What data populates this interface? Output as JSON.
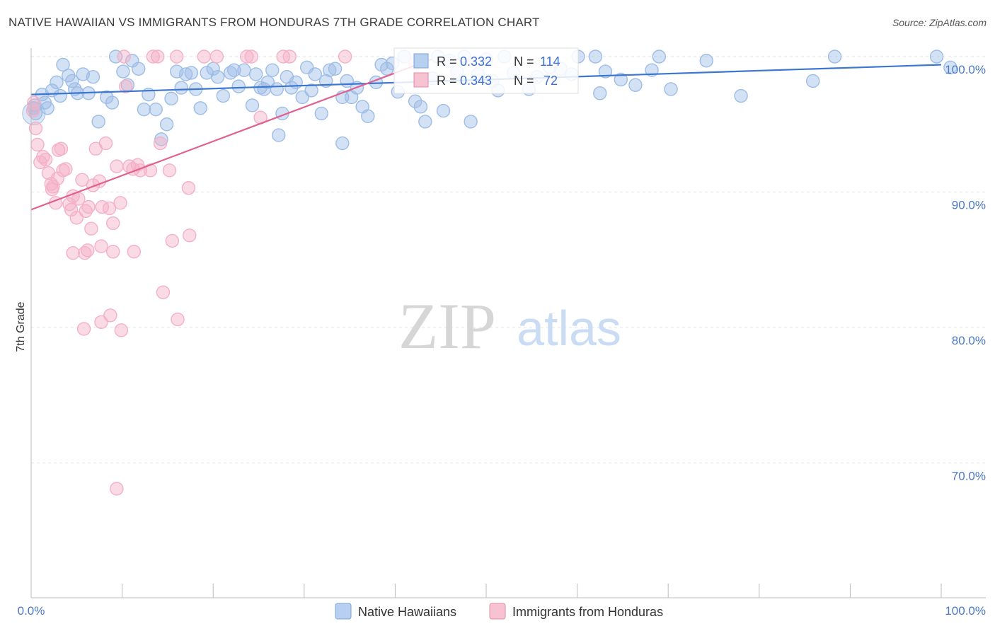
{
  "title": "NATIVE HAWAIIAN VS IMMIGRANTS FROM HONDURAS 7TH GRADE CORRELATION CHART",
  "source": "Source: ZipAtlas.com",
  "watermark": {
    "zip": "ZIP",
    "atlas": "atlas"
  },
  "chart_data": {
    "type": "scatter",
    "xlabel": "",
    "ylabel": "7th Grade",
    "xlim": [
      0,
      100
    ],
    "ylim": [
      60,
      101.5
    ],
    "x_tick_labels": [
      "0.0%",
      "100.0%"
    ],
    "y_ticks": [
      {
        "value": 100,
        "label": "100.0%"
      },
      {
        "value": 90,
        "label": "90.0%"
      },
      {
        "value": 80,
        "label": "80.0%"
      },
      {
        "value": 70,
        "label": "70.0%"
      }
    ],
    "grid": true,
    "legend_position": "bottom-center",
    "stats_box": [
      {
        "r_label": "R = ",
        "r_value": "0.332",
        "n_label": "N = ",
        "n_value": "114"
      },
      {
        "r_label": "R = ",
        "r_value": "0.343",
        "n_label": "N = ",
        "n_value": " 72"
      }
    ],
    "series": [
      {
        "name": "Native Hawaiians",
        "color": "#9dbde6",
        "line_color": "#3b76d0",
        "trend": {
          "x": [
            0,
            100
          ],
          "y": [
            97.2,
            99.4
          ]
        },
        "points": [
          [
            0.3,
            96.2
          ],
          [
            0.5,
            95.8
          ],
          [
            0.4,
            96.4
          ],
          [
            1.2,
            97.2
          ],
          [
            1.5,
            96.6
          ],
          [
            2.3,
            97.5
          ],
          [
            2.8,
            98.1
          ],
          [
            3.5,
            99.4
          ],
          [
            4.5,
            98.2
          ],
          [
            4.8,
            97.6
          ],
          [
            5.1,
            97.3
          ],
          [
            5.7,
            98.7
          ],
          [
            6.3,
            97.3
          ],
          [
            6.8,
            98.5
          ],
          [
            7.4,
            95.2
          ],
          [
            8.3,
            97.0
          ],
          [
            8.9,
            96.6
          ],
          [
            9.3,
            100.0
          ],
          [
            10.1,
            98.9
          ],
          [
            10.6,
            97.9
          ],
          [
            11.1,
            99.7
          ],
          [
            11.8,
            99.1
          ],
          [
            12.4,
            96.1
          ],
          [
            12.9,
            97.2
          ],
          [
            13.7,
            96.1
          ],
          [
            14.3,
            93.9
          ],
          [
            14.9,
            95.0
          ],
          [
            15.4,
            96.9
          ],
          [
            16.0,
            98.9
          ],
          [
            16.5,
            97.7
          ],
          [
            17.0,
            98.7
          ],
          [
            17.6,
            98.8
          ],
          [
            18.1,
            97.6
          ],
          [
            18.6,
            96.2
          ],
          [
            19.3,
            98.8
          ],
          [
            20.0,
            99.1
          ],
          [
            20.5,
            98.5
          ],
          [
            21.1,
            97.1
          ],
          [
            21.9,
            98.8
          ],
          [
            22.3,
            99.0
          ],
          [
            22.8,
            97.8
          ],
          [
            23.4,
            99.0
          ],
          [
            24.3,
            96.4
          ],
          [
            24.7,
            98.7
          ],
          [
            25.2,
            97.7
          ],
          [
            25.6,
            97.6
          ],
          [
            26.0,
            98.1
          ],
          [
            26.5,
            99.0
          ],
          [
            27.0,
            97.6
          ],
          [
            27.6,
            95.8
          ],
          [
            27.2,
            94.2
          ],
          [
            28.1,
            98.5
          ],
          [
            28.6,
            97.7
          ],
          [
            29.1,
            98.1
          ],
          [
            29.8,
            97.0
          ],
          [
            30.3,
            99.2
          ],
          [
            30.8,
            97.5
          ],
          [
            31.2,
            98.7
          ],
          [
            31.9,
            95.8
          ],
          [
            32.4,
            98.2
          ],
          [
            32.8,
            99.0
          ],
          [
            33.4,
            99.1
          ],
          [
            34.2,
            97.0
          ],
          [
            34.7,
            98.2
          ],
          [
            34.2,
            93.6
          ],
          [
            35.2,
            97.0
          ],
          [
            35.8,
            97.7
          ],
          [
            36.4,
            96.3
          ],
          [
            37.0,
            95.6
          ],
          [
            37.9,
            98.1
          ],
          [
            38.5,
            99.4
          ],
          [
            39.1,
            99.1
          ],
          [
            39.7,
            99.5
          ],
          [
            40.3,
            97.4
          ],
          [
            41.0,
            100.0
          ],
          [
            42.2,
            96.7
          ],
          [
            42.8,
            96.3
          ],
          [
            43.3,
            95.2
          ],
          [
            44.1,
            98.4
          ],
          [
            44.7,
            100.0
          ],
          [
            45.3,
            96.0
          ],
          [
            46.0,
            99.7
          ],
          [
            46.8,
            98.9
          ],
          [
            47.6,
            100.0
          ],
          [
            48.3,
            95.2
          ],
          [
            49.1,
            98.7
          ],
          [
            50.0,
            99.8
          ],
          [
            50.7,
            98.2
          ],
          [
            51.3,
            97.5
          ],
          [
            52.0,
            100.0
          ],
          [
            53.0,
            98.8
          ],
          [
            54.7,
            97.6
          ],
          [
            55.6,
            98.5
          ],
          [
            57.0,
            99.2
          ],
          [
            58.2,
            99.1
          ],
          [
            59.4,
            98.7
          ],
          [
            60.1,
            100.0
          ],
          [
            62.0,
            100.0
          ],
          [
            62.5,
            97.3
          ],
          [
            63.1,
            98.9
          ],
          [
            64.8,
            98.3
          ],
          [
            66.4,
            97.9
          ],
          [
            68.2,
            99.0
          ],
          [
            69.0,
            100.0
          ],
          [
            70.3,
            97.6
          ],
          [
            74.2,
            99.7
          ],
          [
            78.0,
            97.1
          ],
          [
            85.9,
            98.2
          ],
          [
            88.3,
            100.0
          ],
          [
            101.0,
            99.2
          ],
          [
            99.5,
            100.0
          ],
          [
            1.8,
            96.2
          ],
          [
            3.2,
            97.1
          ],
          [
            4.1,
            98.6
          ]
        ]
      },
      {
        "name": "Immigrants from Honduras",
        "color": "#f4b0c6",
        "line_color": "#e0608e",
        "trend": {
          "x": [
            0,
            44
          ],
          "y": [
            88.7,
            99.8
          ]
        },
        "points": [
          [
            0.2,
            96.0
          ],
          [
            0.5,
            94.7
          ],
          [
            0.7,
            93.5
          ],
          [
            1.0,
            92.2
          ],
          [
            1.3,
            92.6
          ],
          [
            1.6,
            92.4
          ],
          [
            1.9,
            91.4
          ],
          [
            2.2,
            90.6
          ],
          [
            2.4,
            90.4
          ],
          [
            2.7,
            89.2
          ],
          [
            2.9,
            91.0
          ],
          [
            3.3,
            93.2
          ],
          [
            3.5,
            91.6
          ],
          [
            3.8,
            91.7
          ],
          [
            4.2,
            89.1
          ],
          [
            4.4,
            88.7
          ],
          [
            4.6,
            89.7
          ],
          [
            5.0,
            88.1
          ],
          [
            5.2,
            89.5
          ],
          [
            5.6,
            90.9
          ],
          [
            6.0,
            88.6
          ],
          [
            6.3,
            88.9
          ],
          [
            6.6,
            87.3
          ],
          [
            6.8,
            90.5
          ],
          [
            7.1,
            93.2
          ],
          [
            7.5,
            90.8
          ],
          [
            7.8,
            88.9
          ],
          [
            8.2,
            93.6
          ],
          [
            8.6,
            88.8
          ],
          [
            9.0,
            87.7
          ],
          [
            9.4,
            91.9
          ],
          [
            9.8,
            89.2
          ],
          [
            10.4,
            97.8
          ],
          [
            10.8,
            91.9
          ],
          [
            11.2,
            91.7
          ],
          [
            11.7,
            92.0
          ],
          [
            12.0,
            91.6
          ],
          [
            13.1,
            91.6
          ],
          [
            13.4,
            100.0
          ],
          [
            14.2,
            93.6
          ],
          [
            15.2,
            91.6
          ],
          [
            15.5,
            86.4
          ],
          [
            16.0,
            100.0
          ],
          [
            17.3,
            90.3
          ],
          [
            17.4,
            86.8
          ],
          [
            19.0,
            100.0
          ],
          [
            20.4,
            100.0
          ],
          [
            23.7,
            100.0
          ],
          [
            24.2,
            100.0
          ],
          [
            25.2,
            95.5
          ],
          [
            27.7,
            100.0
          ],
          [
            28.4,
            100.0
          ],
          [
            6.2,
            85.7
          ],
          [
            4.6,
            85.5
          ],
          [
            5.9,
            85.5
          ],
          [
            7.7,
            86.0
          ],
          [
            9.0,
            85.6
          ],
          [
            11.3,
            85.6
          ],
          [
            14.5,
            82.6
          ],
          [
            16.1,
            80.6
          ],
          [
            8.7,
            80.9
          ],
          [
            7.7,
            80.4
          ],
          [
            9.9,
            79.8
          ],
          [
            5.8,
            79.9
          ],
          [
            9.4,
            68.1
          ],
          [
            10.2,
            100.0
          ],
          [
            13.9,
            100.0
          ],
          [
            34.5,
            100.0
          ],
          [
            42.2,
            99.5
          ],
          [
            2.3,
            90.2
          ],
          [
            3.0,
            93.1
          ],
          [
            0.3,
            96.6
          ]
        ]
      }
    ]
  }
}
